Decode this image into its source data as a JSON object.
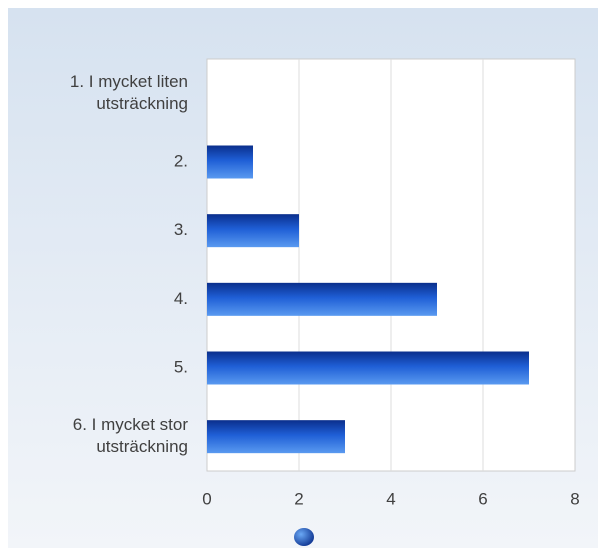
{
  "chart_data": {
    "type": "bar",
    "orientation": "horizontal",
    "title": "",
    "xlabel": "",
    "ylabel": "",
    "categories": [
      [
        "1. I mycket liten",
        "utsträckning"
      ],
      [
        "2."
      ],
      [
        "3."
      ],
      [
        "4."
      ],
      [
        "5."
      ],
      [
        "6. I mycket stor",
        "utsträckning"
      ]
    ],
    "values": [
      0,
      1,
      2,
      5,
      7,
      3
    ],
    "xlim": [
      0,
      8
    ],
    "xticks": [
      0,
      2,
      4,
      6,
      8
    ],
    "grid": true,
    "legend": "bottom",
    "colors": {
      "bar_dark": "#0a2f8c",
      "bar_mid": "#1f5fd6",
      "bar_light": "#5a9af0",
      "background_top": "#d6e2f0",
      "background_bottom": "#f2f5f9",
      "plot_background": "#ffffff",
      "grid": "#dddddd",
      "text": "#404040"
    }
  }
}
